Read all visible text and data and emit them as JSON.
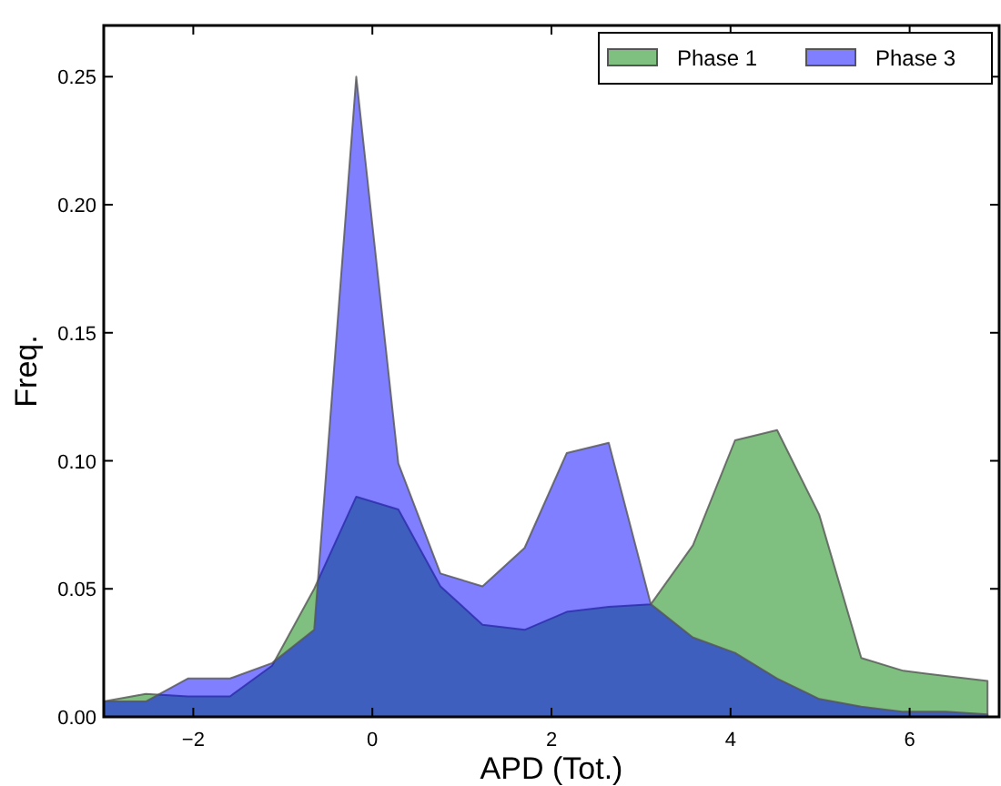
{
  "chart_data": {
    "type": "area",
    "xlabel": "APD (Tot.)",
    "ylabel": "Freq.",
    "xlim": [
      -3,
      7
    ],
    "ylim": [
      0,
      0.27
    ],
    "xticks": [
      {
        "value": -2,
        "label": "−2"
      },
      0,
      2,
      4,
      6
    ],
    "yticks": [
      {
        "value": 0,
        "label": "0.00"
      },
      {
        "value": 0.05,
        "label": "0.05"
      },
      {
        "value": 0.1,
        "label": "0.10"
      },
      {
        "value": 0.15,
        "label": "0.15"
      },
      {
        "value": 0.2,
        "label": "0.20"
      },
      {
        "value": 0.25,
        "label": "0.25"
      }
    ],
    "grid": false,
    "legend": "top right",
    "x": [
      -3,
      -2.53,
      -2.06,
      -1.59,
      -1.12,
      -0.65,
      -0.18,
      0.29,
      0.76,
      1.23,
      1.7,
      2.17,
      2.64,
      3.11,
      3.58,
      4.05,
      4.52,
      4.99,
      5.46,
      5.93,
      6.4,
      6.87
    ],
    "series": [
      {
        "name": "Phase 1",
        "color": "#008000",
        "values": [
          0.006,
          0.009,
          0.008,
          0.008,
          0.02,
          0.05,
          0.086,
          0.081,
          0.051,
          0.036,
          0.034,
          0.041,
          0.043,
          0.044,
          0.067,
          0.108,
          0.112,
          0.079,
          0.023,
          0.018,
          0.016,
          0.014
        ]
      },
      {
        "name": "Phase 3",
        "color": "#0000ff",
        "values": [
          0.006,
          0.006,
          0.015,
          0.015,
          0.021,
          0.034,
          0.25,
          0.099,
          0.056,
          0.051,
          0.066,
          0.103,
          0.107,
          0.044,
          0.031,
          0.025,
          0.015,
          0.007,
          0.004,
          0.002,
          0.002,
          0.001
        ]
      }
    ]
  }
}
